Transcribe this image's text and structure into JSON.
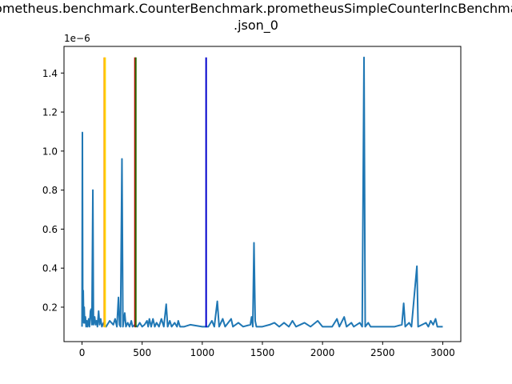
{
  "chart_data": {
    "type": "line",
    "title_lines": [
      "prometheus.benchmark.CounterBenchmark.prometheusSimpleCounterIncBenchmark",
      ".json_0"
    ],
    "xlabel": "",
    "ylabel": "",
    "y_multiplier_label": "1e−6",
    "xlim": [
      -150,
      3150
    ],
    "ylim": [
      0.0235,
      1.5365
    ],
    "x_ticks": [
      0,
      500,
      1000,
      1500,
      2000,
      2500,
      3000
    ],
    "x_tick_labels": [
      "0",
      "500",
      "1000",
      "1500",
      "2000",
      "2500",
      "3000"
    ],
    "y_ticks": [
      0.2,
      0.4,
      0.6,
      0.8,
      1.0,
      1.2,
      1.4
    ],
    "y_tick_labels": [
      "0.2",
      "0.4",
      "0.6",
      "0.8",
      "1.0",
      "1.2",
      "1.4"
    ],
    "grid": false,
    "series": [
      {
        "color": "#1f77b4",
        "baseline": 0.097,
        "x_start": 0,
        "x_end": 3000,
        "points": [
          [
            0,
            0.1
          ],
          [
            3,
            1.095
          ],
          [
            6,
            0.17
          ],
          [
            10,
            0.285
          ],
          [
            14,
            0.12
          ],
          [
            18,
            0.2
          ],
          [
            22,
            0.12
          ],
          [
            28,
            0.15
          ],
          [
            34,
            0.1
          ],
          [
            40,
            0.13
          ],
          [
            46,
            0.1
          ],
          [
            55,
            0.14
          ],
          [
            62,
            0.1
          ],
          [
            70,
            0.18
          ],
          [
            76,
            0.19
          ],
          [
            82,
            0.11
          ],
          [
            90,
            0.8
          ],
          [
            95,
            0.11
          ],
          [
            105,
            0.15
          ],
          [
            112,
            0.11
          ],
          [
            120,
            0.13
          ],
          [
            128,
            0.1
          ],
          [
            138,
            0.18
          ],
          [
            146,
            0.11
          ],
          [
            155,
            0.14
          ],
          [
            165,
            0.1
          ],
          [
            180,
            0.12
          ],
          [
            200,
            0.1
          ],
          [
            230,
            0.13
          ],
          [
            260,
            0.11
          ],
          [
            275,
            0.14
          ],
          [
            290,
            0.1
          ],
          [
            303,
            0.25
          ],
          [
            312,
            0.11
          ],
          [
            320,
            0.1
          ],
          [
            332,
            0.96
          ],
          [
            340,
            0.1
          ],
          [
            355,
            0.17
          ],
          [
            365,
            0.1
          ],
          [
            380,
            0.12
          ],
          [
            395,
            0.1
          ],
          [
            410,
            0.13
          ],
          [
            420,
            0.1
          ],
          [
            440,
            0.11
          ],
          [
            460,
            0.1
          ],
          [
            480,
            0.12
          ],
          [
            500,
            0.1
          ],
          [
            520,
            0.11
          ],
          [
            540,
            0.13
          ],
          [
            550,
            0.1
          ],
          [
            560,
            0.14
          ],
          [
            575,
            0.1
          ],
          [
            590,
            0.14
          ],
          [
            605,
            0.1
          ],
          [
            620,
            0.12
          ],
          [
            640,
            0.1
          ],
          [
            660,
            0.14
          ],
          [
            680,
            0.1
          ],
          [
            700,
            0.215
          ],
          [
            712,
            0.1
          ],
          [
            730,
            0.13
          ],
          [
            745,
            0.1
          ],
          [
            770,
            0.12
          ],
          [
            790,
            0.1
          ],
          [
            800,
            0.13
          ],
          [
            815,
            0.1
          ],
          [
            850,
            0.1
          ],
          [
            900,
            0.11
          ],
          [
            1000,
            0.1
          ],
          [
            1050,
            0.1
          ],
          [
            1080,
            0.13
          ],
          [
            1100,
            0.1
          ],
          [
            1125,
            0.23
          ],
          [
            1140,
            0.1
          ],
          [
            1170,
            0.14
          ],
          [
            1190,
            0.1
          ],
          [
            1240,
            0.14
          ],
          [
            1255,
            0.1
          ],
          [
            1300,
            0.12
          ],
          [
            1340,
            0.1
          ],
          [
            1400,
            0.11
          ],
          [
            1410,
            0.15
          ],
          [
            1420,
            0.1
          ],
          [
            1430,
            0.53
          ],
          [
            1440,
            0.13
          ],
          [
            1450,
            0.1
          ],
          [
            1500,
            0.1
          ],
          [
            1560,
            0.11
          ],
          [
            1600,
            0.12
          ],
          [
            1640,
            0.1
          ],
          [
            1680,
            0.12
          ],
          [
            1720,
            0.1
          ],
          [
            1750,
            0.13
          ],
          [
            1780,
            0.1
          ],
          [
            1850,
            0.12
          ],
          [
            1900,
            0.1
          ],
          [
            1960,
            0.13
          ],
          [
            2000,
            0.1
          ],
          [
            2080,
            0.1
          ],
          [
            2120,
            0.14
          ],
          [
            2140,
            0.1
          ],
          [
            2180,
            0.15
          ],
          [
            2200,
            0.1
          ],
          [
            2240,
            0.12
          ],
          [
            2260,
            0.1
          ],
          [
            2310,
            0.12
          ],
          [
            2330,
            0.1
          ],
          [
            2345,
            1.48
          ],
          [
            2355,
            0.1
          ],
          [
            2380,
            0.12
          ],
          [
            2400,
            0.1
          ],
          [
            2500,
            0.1
          ],
          [
            2600,
            0.1
          ],
          [
            2660,
            0.11
          ],
          [
            2675,
            0.22
          ],
          [
            2688,
            0.1
          ],
          [
            2720,
            0.12
          ],
          [
            2740,
            0.1
          ],
          [
            2785,
            0.41
          ],
          [
            2795,
            0.1
          ],
          [
            2860,
            0.12
          ],
          [
            2880,
            0.1
          ],
          [
            2900,
            0.13
          ],
          [
            2920,
            0.11
          ],
          [
            2940,
            0.14
          ],
          [
            2955,
            0.1
          ],
          [
            3000,
            0.1
          ]
        ]
      }
    ],
    "vertical_lines": [
      {
        "x": 185,
        "y0": 0.097,
        "y1": 1.48,
        "color": "#ff9900"
      },
      {
        "x": 192,
        "y0": 0.097,
        "y1": 1.48,
        "color": "#ffd700"
      },
      {
        "x": 440,
        "y0": 0.097,
        "y1": 1.48,
        "color": "#cc0000"
      },
      {
        "x": 447,
        "y0": 0.097,
        "y1": 1.48,
        "color": "#2d6b00"
      },
      {
        "x": 1032,
        "y0": 0.097,
        "y1": 1.48,
        "color": "#0000cc"
      }
    ]
  }
}
